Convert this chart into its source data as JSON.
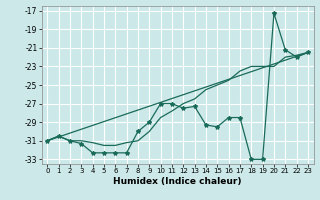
{
  "title": "",
  "xlabel": "Humidex (Indice chaleur)",
  "bg_color": "#cce8e8",
  "grid_color": "#ffffff",
  "line_color": "#1a6b5a",
  "xlim": [
    -0.5,
    23.5
  ],
  "ylim": [
    -33.5,
    -16.5
  ],
  "yticks": [
    -17,
    -19,
    -21,
    -23,
    -25,
    -27,
    -29,
    -31,
    -33
  ],
  "xticks": [
    0,
    1,
    2,
    3,
    4,
    5,
    6,
    7,
    8,
    9,
    10,
    11,
    12,
    13,
    14,
    15,
    16,
    17,
    18,
    19,
    20,
    21,
    22,
    23
  ],
  "series1_x": [
    0,
    1,
    2,
    3,
    4,
    5,
    6,
    7,
    8,
    9,
    10,
    11,
    12,
    13,
    14,
    15,
    16,
    17,
    18,
    19,
    20,
    21,
    22,
    23
  ],
  "series1_y": [
    -31.0,
    -30.5,
    -31.0,
    -31.3,
    -32.3,
    -32.3,
    -32.3,
    -32.3,
    -30.0,
    -29.0,
    -27.0,
    -27.0,
    -27.5,
    -27.3,
    -29.3,
    -29.5,
    -28.5,
    -28.5,
    -33.0,
    -33.0,
    -17.3,
    -21.2,
    -22.0,
    -21.5
  ],
  "series2_x": [
    0,
    1,
    2,
    3,
    4,
    5,
    6,
    7,
    8,
    9,
    10,
    11,
    12,
    13,
    14,
    15,
    16,
    17,
    18,
    19,
    20,
    21,
    22,
    23
  ],
  "series2_y": [
    -31.0,
    -30.5,
    -31.0,
    -31.0,
    -31.2,
    -31.5,
    -31.5,
    -31.2,
    -31.0,
    -30.0,
    -28.5,
    -27.8,
    -27.0,
    -26.5,
    -25.5,
    -25.0,
    -24.5,
    -23.5,
    -23.0,
    -23.0,
    -23.0,
    -22.0,
    -21.8,
    -21.5
  ],
  "series3_x": [
    0,
    23
  ],
  "series3_y": [
    -31.0,
    -21.5
  ]
}
